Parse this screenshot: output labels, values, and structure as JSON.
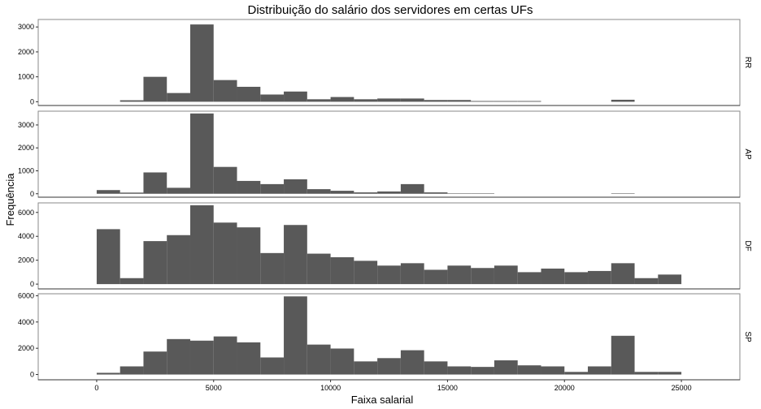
{
  "chart_data": {
    "type": "bar",
    "title": "Distribuição do salário dos servidores em certas UFs",
    "xlabel": "Faixa salarial",
    "ylabel": "Frequência",
    "bin_width": 1000,
    "x_ticks": [
      0,
      5000,
      10000,
      15000,
      20000,
      25000
    ],
    "x_tick_labels": [
      "0",
      "5000",
      "10000",
      "15000",
      "20000",
      "25000"
    ],
    "xlim": [
      -2500,
      27500
    ],
    "grid": false,
    "facets": [
      {
        "name": "RR",
        "ylim": [
          -150,
          3300
        ],
        "y_ticks": [
          0,
          1000,
          2000,
          3000
        ],
        "y_tick_labels": [
          "0",
          "1000",
          "2000",
          "3000"
        ],
        "bins": [
          {
            "start": 1000,
            "value": 60
          },
          {
            "start": 2000,
            "value": 1000
          },
          {
            "start": 3000,
            "value": 350
          },
          {
            "start": 4000,
            "value": 3100
          },
          {
            "start": 5000,
            "value": 870
          },
          {
            "start": 6000,
            "value": 600
          },
          {
            "start": 7000,
            "value": 290
          },
          {
            "start": 8000,
            "value": 410
          },
          {
            "start": 9000,
            "value": 100
          },
          {
            "start": 10000,
            "value": 190
          },
          {
            "start": 11000,
            "value": 100
          },
          {
            "start": 12000,
            "value": 130
          },
          {
            "start": 13000,
            "value": 130
          },
          {
            "start": 14000,
            "value": 70
          },
          {
            "start": 15000,
            "value": 70
          },
          {
            "start": 16000,
            "value": 30
          },
          {
            "start": 17000,
            "value": 30
          },
          {
            "start": 18000,
            "value": 30
          },
          {
            "start": 22000,
            "value": 80
          }
        ]
      },
      {
        "name": "AP",
        "ylim": [
          -150,
          3600
        ],
        "y_ticks": [
          0,
          1000,
          2000,
          3000
        ],
        "y_tick_labels": [
          "0",
          "1000",
          "2000",
          "3000"
        ],
        "bins": [
          {
            "start": 0,
            "value": 160
          },
          {
            "start": 1000,
            "value": 50
          },
          {
            "start": 2000,
            "value": 930
          },
          {
            "start": 3000,
            "value": 260
          },
          {
            "start": 4000,
            "value": 3500
          },
          {
            "start": 5000,
            "value": 1170
          },
          {
            "start": 6000,
            "value": 560
          },
          {
            "start": 7000,
            "value": 420
          },
          {
            "start": 8000,
            "value": 630
          },
          {
            "start": 9000,
            "value": 200
          },
          {
            "start": 10000,
            "value": 130
          },
          {
            "start": 11000,
            "value": 60
          },
          {
            "start": 12000,
            "value": 100
          },
          {
            "start": 13000,
            "value": 420
          },
          {
            "start": 14000,
            "value": 60
          },
          {
            "start": 15000,
            "value": 20
          },
          {
            "start": 16000,
            "value": 20
          },
          {
            "start": 22000,
            "value": 20
          }
        ]
      },
      {
        "name": "DF",
        "ylim": [
          -400,
          6800
        ],
        "y_ticks": [
          0,
          2000,
          4000,
          6000
        ],
        "y_tick_labels": [
          "0",
          "2000",
          "4000",
          "6000"
        ],
        "bins": [
          {
            "start": 0,
            "value": 4600
          },
          {
            "start": 1000,
            "value": 500
          },
          {
            "start": 2000,
            "value": 3600
          },
          {
            "start": 3000,
            "value": 4100
          },
          {
            "start": 4000,
            "value": 6600
          },
          {
            "start": 5000,
            "value": 5150
          },
          {
            "start": 6000,
            "value": 4750
          },
          {
            "start": 7000,
            "value": 2600
          },
          {
            "start": 8000,
            "value": 4950
          },
          {
            "start": 9000,
            "value": 2550
          },
          {
            "start": 10000,
            "value": 2250
          },
          {
            "start": 11000,
            "value": 1950
          },
          {
            "start": 12000,
            "value": 1550
          },
          {
            "start": 13000,
            "value": 1750
          },
          {
            "start": 14000,
            "value": 1200
          },
          {
            "start": 15000,
            "value": 1550
          },
          {
            "start": 16000,
            "value": 1350
          },
          {
            "start": 17000,
            "value": 1550
          },
          {
            "start": 18000,
            "value": 1000
          },
          {
            "start": 19000,
            "value": 1300
          },
          {
            "start": 20000,
            "value": 1000
          },
          {
            "start": 21000,
            "value": 1100
          },
          {
            "start": 22000,
            "value": 1750
          },
          {
            "start": 23000,
            "value": 500
          },
          {
            "start": 24000,
            "value": 800
          }
        ]
      },
      {
        "name": "SP",
        "ylim": [
          -400,
          6150
        ],
        "y_ticks": [
          0,
          2000,
          4000,
          6000
        ],
        "y_tick_labels": [
          "0",
          "2000",
          "4000",
          "6000"
        ],
        "bins": [
          {
            "start": 0,
            "value": 130
          },
          {
            "start": 1000,
            "value": 620
          },
          {
            "start": 2000,
            "value": 1750
          },
          {
            "start": 3000,
            "value": 2700
          },
          {
            "start": 4000,
            "value": 2580
          },
          {
            "start": 5000,
            "value": 2900
          },
          {
            "start": 6000,
            "value": 2450
          },
          {
            "start": 7000,
            "value": 1300
          },
          {
            "start": 8000,
            "value": 5950
          },
          {
            "start": 9000,
            "value": 2280
          },
          {
            "start": 10000,
            "value": 1980
          },
          {
            "start": 11000,
            "value": 1000
          },
          {
            "start": 12000,
            "value": 1250
          },
          {
            "start": 13000,
            "value": 1850
          },
          {
            "start": 14000,
            "value": 1000
          },
          {
            "start": 15000,
            "value": 620
          },
          {
            "start": 16000,
            "value": 580
          },
          {
            "start": 17000,
            "value": 1080
          },
          {
            "start": 18000,
            "value": 700
          },
          {
            "start": 19000,
            "value": 620
          },
          {
            "start": 20000,
            "value": 200
          },
          {
            "start": 21000,
            "value": 620
          },
          {
            "start": 22000,
            "value": 2950
          },
          {
            "start": 23000,
            "value": 200
          },
          {
            "start": 24000,
            "value": 200
          }
        ]
      }
    ]
  }
}
